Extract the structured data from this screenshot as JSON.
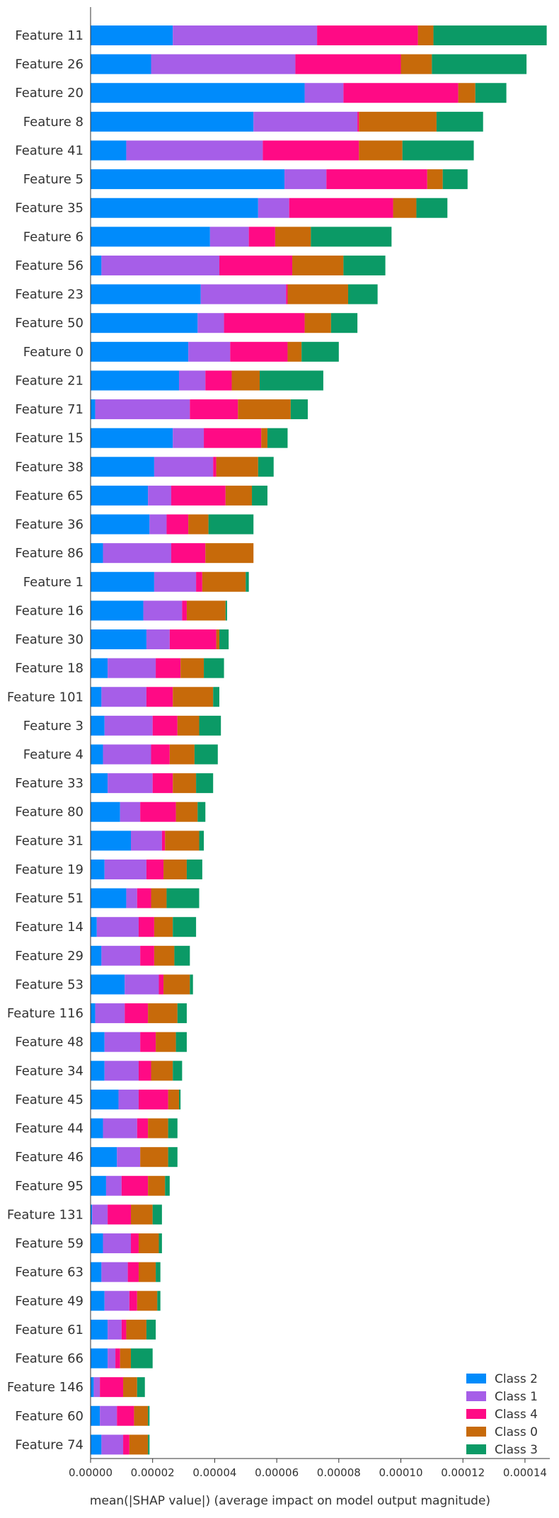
{
  "chart_data": {
    "type": "bar",
    "orientation": "horizontal",
    "stacked": true,
    "xlabel": "mean(|SHAP value|) (average impact on model output magnitude)",
    "xlim": [
      0,
      0.000148
    ],
    "xticks": [
      "0.00000",
      "0.00002",
      "0.00004",
      "0.00006",
      "0.00008",
      "0.00010",
      "0.00012",
      "0.00014"
    ],
    "xtick_values": [
      0,
      2e-05,
      4e-05,
      6e-05,
      8e-05,
      0.0001,
      0.00012,
      0.00014
    ],
    "grid": false,
    "legend_position": "bottom-right",
    "categories": [
      "Feature 11",
      "Feature 26",
      "Feature 20",
      "Feature 8",
      "Feature 41",
      "Feature 5",
      "Feature 35",
      "Feature 6",
      "Feature 56",
      "Feature 23",
      "Feature 50",
      "Feature 0",
      "Feature 21",
      "Feature 71",
      "Feature 15",
      "Feature 38",
      "Feature 65",
      "Feature 36",
      "Feature 86",
      "Feature 1",
      "Feature 16",
      "Feature 30",
      "Feature 18",
      "Feature 101",
      "Feature 3",
      "Feature 4",
      "Feature 33",
      "Feature 80",
      "Feature 31",
      "Feature 19",
      "Feature 51",
      "Feature 14",
      "Feature 29",
      "Feature 53",
      "Feature 116",
      "Feature 48",
      "Feature 34",
      "Feature 45",
      "Feature 44",
      "Feature 46",
      "Feature 95",
      "Feature 131",
      "Feature 59",
      "Feature 63",
      "Feature 49",
      "Feature 61",
      "Feature 66",
      "Feature 146",
      "Feature 60",
      "Feature 74"
    ],
    "series": [
      {
        "name": "Class 2",
        "color": "#008bfb",
        "values": [
          2.65e-05,
          1.95e-05,
          6.9e-05,
          5.25e-05,
          1.15e-05,
          6.25e-05,
          5.4e-05,
          3.85e-05,
          3.5e-06,
          3.55e-05,
          3.45e-05,
          3.15e-05,
          2.85e-05,
          1.5e-06,
          2.65e-05,
          2.05e-05,
          1.85e-05,
          1.9e-05,
          4e-06,
          2.05e-05,
          1.7e-05,
          1.8e-05,
          5.5e-06,
          3.5e-06,
          4.5e-06,
          4e-06,
          5.5e-06,
          9.5e-06,
          1.3e-05,
          4.5e-06,
          1.15e-05,
          2e-06,
          3.5e-06,
          1.1e-05,
          1.5e-06,
          4.5e-06,
          4.5e-06,
          9e-06,
          4e-06,
          8.5e-06,
          5e-06,
          5e-07,
          4e-06,
          3.5e-06,
          4.5e-06,
          5.5e-06,
          5.5e-06,
          1e-06,
          3e-06,
          3.5e-06
        ]
      },
      {
        "name": "Class 1",
        "color": "#a65ee8",
        "values": [
          4.65e-05,
          4.65e-05,
          1.25e-05,
          3.35e-05,
          4.4e-05,
          1.35e-05,
          1e-05,
          1.25e-05,
          3.8e-05,
          2.75e-05,
          8.5e-06,
          1.35e-05,
          8.5e-06,
          3.05e-05,
          1e-05,
          1.9e-05,
          7.5e-06,
          5.5e-06,
          2.2e-05,
          1.35e-05,
          1.25e-05,
          7.5e-06,
          1.55e-05,
          1.45e-05,
          1.55e-05,
          1.55e-05,
          1.45e-05,
          6.5e-06,
          1e-05,
          1.35e-05,
          3.5e-06,
          1.35e-05,
          1.25e-05,
          1.1e-05,
          9.5e-06,
          1.15e-05,
          1.1e-05,
          6.5e-06,
          1.1e-05,
          7.5e-06,
          5e-06,
          5e-06,
          9e-06,
          8.5e-06,
          8e-06,
          4.5e-06,
          2.5e-06,
          2e-06,
          5.5e-06,
          7e-06
        ]
      },
      {
        "name": "Class 4",
        "color": "#ff0a85",
        "values": [
          3.25e-05,
          3.4e-05,
          3.7e-05,
          5e-07,
          3.1e-05,
          3.25e-05,
          3.35e-05,
          8.5e-06,
          2.35e-05,
          5e-07,
          2.6e-05,
          1.85e-05,
          8.5e-06,
          1.55e-05,
          1.85e-05,
          1e-06,
          1.75e-05,
          7e-06,
          1.1e-05,
          2e-06,
          1.5e-06,
          1.5e-05,
          8e-06,
          8.5e-06,
          8e-06,
          6e-06,
          6.5e-06,
          1.15e-05,
          1e-06,
          5.5e-06,
          4.5e-06,
          5e-06,
          4.5e-06,
          1.5e-06,
          7.5e-06,
          5e-06,
          4e-06,
          9.5e-06,
          3.5e-06,
          0,
          8.5e-06,
          7.5e-06,
          2.5e-06,
          3.5e-06,
          2.5e-06,
          1.5e-06,
          1.5e-06,
          7.5e-06,
          5.5e-06,
          2e-06
        ]
      },
      {
        "name": "Class 0",
        "color": "#c76a0a",
        "values": [
          5e-06,
          1e-05,
          5.5e-06,
          2.5e-05,
          1.4e-05,
          5e-06,
          7.5e-06,
          1.15e-05,
          1.65e-05,
          1.95e-05,
          8.5e-06,
          4.5e-06,
          9e-06,
          1.7e-05,
          2e-06,
          1.35e-05,
          8.5e-06,
          6.5e-06,
          1.55e-05,
          1.4e-05,
          1.25e-05,
          1e-06,
          7.5e-06,
          1.3e-05,
          7e-06,
          8e-06,
          7.5e-06,
          7e-06,
          1.1e-05,
          7.5e-06,
          5e-06,
          6e-06,
          6.5e-06,
          8.5e-06,
          9.5e-06,
          6.5e-06,
          7e-06,
          3.5e-06,
          6.5e-06,
          9e-06,
          5.5e-06,
          7e-06,
          6.5e-06,
          5.5e-06,
          6.5e-06,
          6.5e-06,
          3.5e-06,
          4.5e-06,
          4.5e-06,
          6e-06
        ]
      },
      {
        "name": "Class 3",
        "color": "#0b9a66",
        "values": [
          3.65e-05,
          3.05e-05,
          1e-05,
          1.5e-05,
          2.3e-05,
          8e-06,
          1e-05,
          2.6e-05,
          1.35e-05,
          9.5e-06,
          8.5e-06,
          1.2e-05,
          2.05e-05,
          5.5e-06,
          6.5e-06,
          5e-06,
          5e-06,
          1.45e-05,
          0,
          1e-06,
          5e-07,
          3e-06,
          6.5e-06,
          2e-06,
          7e-06,
          7.5e-06,
          5.5e-06,
          2.5e-06,
          1.5e-06,
          5e-06,
          1.05e-05,
          7.5e-06,
          5e-06,
          1e-06,
          3e-06,
          3.5e-06,
          3e-06,
          5e-07,
          3e-06,
          3e-06,
          1.5e-06,
          3e-06,
          1e-06,
          1.5e-06,
          1e-06,
          3e-06,
          7e-06,
          2.5e-06,
          5e-07,
          5e-07
        ]
      }
    ]
  }
}
